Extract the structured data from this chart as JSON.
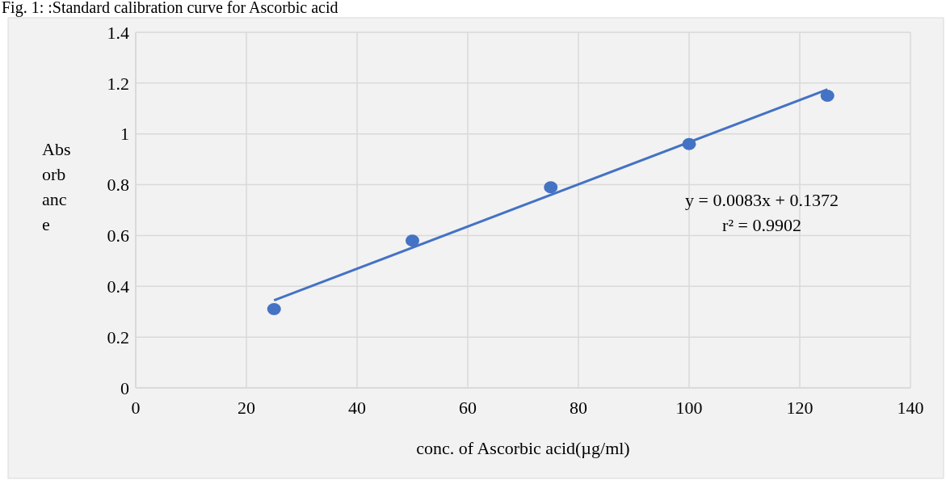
{
  "chart_data": {
    "type": "scatter",
    "title": "Fig. 1: :Standard calibration curve for Ascorbic acid",
    "xlabel": "conc. of Ascorbic acid(µg/ml)",
    "ylabel": "Absorbance",
    "x": [
      25,
      50,
      75,
      100,
      125
    ],
    "series": [
      {
        "color": "#4472c4",
        "marker": "circle",
        "values": [
          0.31,
          0.58,
          0.79,
          0.96,
          1.15
        ]
      },
      {
        "type": "line",
        "color": "#4472c4",
        "x": [
          25,
          125
        ],
        "values": [
          0.345,
          1.175
        ],
        "line_style": "solid"
      }
    ],
    "annotations": [
      "y = 0.0083x + 0.1372",
      "r² = 0.9902"
    ],
    "xlim": [
      0,
      140
    ],
    "xticks": [
      0,
      20,
      40,
      60,
      80,
      100,
      120,
      140
    ],
    "ylim": [
      0,
      1.4
    ],
    "yticks": [
      0,
      0.2,
      0.4,
      0.6,
      0.8,
      1,
      1.2,
      1.4
    ],
    "grid": true
  }
}
